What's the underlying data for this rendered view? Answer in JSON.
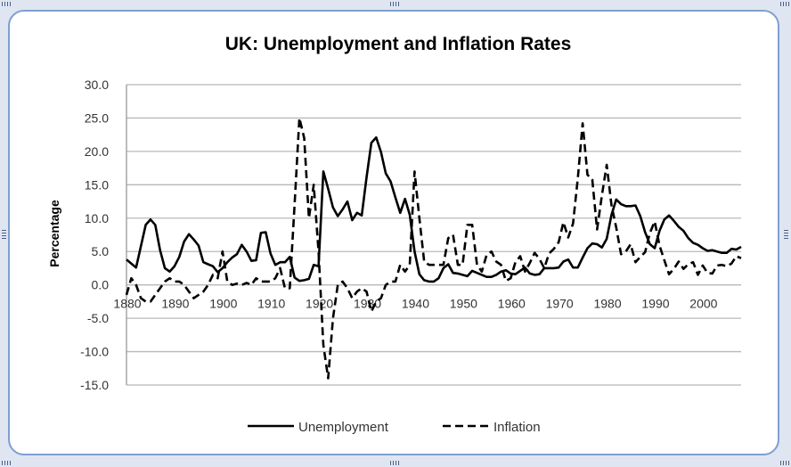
{
  "chart_data": {
    "type": "line",
    "title": "UK: Unemployment and Inflation Rates",
    "xlabel": "",
    "ylabel": "Percentage",
    "xlim": [
      1880,
      2008
    ],
    "ylim": [
      -15,
      30
    ],
    "yticks": [
      "30.0",
      "25.0",
      "20.0",
      "15.0",
      "10.0",
      "5.0",
      "0.0",
      "-5.0",
      "-10.0",
      "-15.0"
    ],
    "xticks": [
      "1880",
      "1890",
      "1900",
      "1910",
      "1920",
      "1930",
      "1940",
      "1950",
      "1960",
      "1970",
      "1980",
      "1990",
      "2000"
    ],
    "grid": true,
    "legend": "bottom",
    "series": [
      {
        "name": "Unemployment",
        "style": "solid",
        "color": "#000000",
        "x": [
          1880,
          1881,
          1882,
          1883,
          1884,
          1885,
          1886,
          1887,
          1888,
          1889,
          1890,
          1891,
          1892,
          1893,
          1894,
          1895,
          1896,
          1897,
          1898,
          1899,
          1900,
          1901,
          1902,
          1903,
          1904,
          1905,
          1906,
          1907,
          1908,
          1909,
          1910,
          1911,
          1912,
          1913,
          1914,
          1915,
          1916,
          1917,
          1918,
          1919,
          1920,
          1921,
          1922,
          1923,
          1924,
          1925,
          1926,
          1927,
          1928,
          1929,
          1930,
          1931,
          1932,
          1933,
          1934,
          1935,
          1936,
          1937,
          1938,
          1939,
          1940,
          1941,
          1942,
          1943,
          1944,
          1945,
          1946,
          1947,
          1948,
          1949,
          1950,
          1951,
          1952,
          1953,
          1954,
          1955,
          1956,
          1957,
          1958,
          1959,
          1960,
          1961,
          1962,
          1963,
          1964,
          1965,
          1966,
          1967,
          1968,
          1969,
          1970,
          1971,
          1972,
          1973,
          1974,
          1975,
          1976,
          1977,
          1978,
          1979,
          1980,
          1981,
          1982,
          1983,
          1984,
          1985,
          1986,
          1987,
          1988,
          1989,
          1990,
          1991,
          1992,
          1993,
          1994,
          1995,
          1996,
          1997,
          1998,
          1999,
          2000,
          2001,
          2002,
          2003,
          2004,
          2005,
          2006,
          2007,
          2008
        ],
        "values": [
          3.8,
          3.2,
          2.6,
          5.8,
          9.0,
          9.8,
          9.0,
          5.2,
          2.5,
          2.0,
          2.8,
          4.2,
          6.5,
          7.6,
          6.8,
          5.9,
          3.4,
          3.1,
          2.8,
          1.9,
          2.5,
          3.4,
          4.1,
          4.6,
          6.0,
          5.0,
          3.6,
          3.7,
          7.8,
          7.9,
          4.7,
          3.0,
          3.4,
          3.4,
          4.2,
          1.1,
          0.6,
          0.7,
          0.9,
          3.0,
          2.8,
          17.0,
          14.4,
          11.6,
          10.3,
          11.3,
          12.5,
          9.7,
          10.8,
          10.4,
          16.1,
          21.3,
          22.1,
          19.9,
          16.7,
          15.5,
          13.1,
          10.8,
          12.9,
          10.5,
          5.0,
          1.6,
          0.7,
          0.5,
          0.5,
          1.0,
          2.5,
          3.1,
          1.8,
          1.7,
          1.5,
          1.3,
          2.1,
          1.8,
          1.5,
          1.2,
          1.2,
          1.5,
          2.0,
          2.2,
          1.7,
          1.6,
          2.1,
          2.6,
          1.7,
          1.5,
          1.6,
          2.5,
          2.5,
          2.5,
          2.6,
          3.5,
          3.8,
          2.6,
          2.6,
          4.1,
          5.5,
          6.2,
          6.1,
          5.6,
          6.9,
          10.5,
          12.8,
          12.1,
          11.8,
          11.8,
          11.9,
          10.3,
          7.9,
          6.1,
          5.5,
          8.1,
          9.8,
          10.4,
          9.6,
          8.7,
          8.1,
          7.0,
          6.3,
          6.0,
          5.5,
          5.1,
          5.2,
          5.0,
          4.8,
          4.8,
          5.4,
          5.3,
          5.7
        ]
      },
      {
        "name": "Inflation",
        "style": "dashed",
        "color": "#000000",
        "x": [
          1880,
          1881,
          1882,
          1883,
          1884,
          1885,
          1886,
          1887,
          1888,
          1889,
          1890,
          1891,
          1892,
          1893,
          1894,
          1895,
          1896,
          1897,
          1898,
          1899,
          1900,
          1901,
          1902,
          1903,
          1904,
          1905,
          1906,
          1907,
          1908,
          1909,
          1910,
          1911,
          1912,
          1913,
          1914,
          1915,
          1916,
          1917,
          1918,
          1919,
          1920,
          1921,
          1922,
          1923,
          1924,
          1925,
          1926,
          1927,
          1928,
          1929,
          1930,
          1931,
          1932,
          1933,
          1934,
          1935,
          1936,
          1937,
          1938,
          1939,
          1940,
          1941,
          1942,
          1943,
          1944,
          1945,
          1946,
          1947,
          1948,
          1949,
          1950,
          1951,
          1952,
          1953,
          1954,
          1955,
          1956,
          1957,
          1958,
          1959,
          1960,
          1961,
          1962,
          1963,
          1964,
          1965,
          1966,
          1967,
          1968,
          1969,
          1970,
          1971,
          1972,
          1973,
          1974,
          1975,
          1976,
          1977,
          1978,
          1979,
          1980,
          1981,
          1982,
          1983,
          1984,
          1985,
          1986,
          1987,
          1988,
          1989,
          1990,
          1991,
          1992,
          1993,
          1994,
          1995,
          1996,
          1997,
          1998,
          1999,
          2000,
          2001,
          2002,
          2003,
          2004,
          2005,
          2006,
          2007,
          2008
        ],
        "values": [
          -1.5,
          1.0,
          0.0,
          -2.0,
          -2.5,
          -2.5,
          -1.5,
          -0.5,
          0.5,
          1.0,
          0.5,
          0.5,
          0.0,
          -1.0,
          -2.0,
          -1.5,
          -1.0,
          0.0,
          1.5,
          1.0,
          5.0,
          0.5,
          0.0,
          0.2,
          0.0,
          0.3,
          0.0,
          1.0,
          0.5,
          0.5,
          0.5,
          1.0,
          2.5,
          -0.5,
          -0.5,
          12.0,
          25.0,
          22.0,
          10.0,
          15.0,
          5.0,
          -9.0,
          -14.0,
          -5.0,
          0.0,
          0.5,
          -0.5,
          -2.0,
          -1.0,
          -0.5,
          -1.0,
          -4.0,
          -2.5,
          -2.0,
          0.0,
          0.5,
          0.5,
          3.0,
          2.0,
          3.0,
          17.0,
          10.0,
          3.5,
          3.0,
          3.0,
          3.0,
          3.0,
          7.0,
          7.5,
          3.0,
          3.0,
          9.0,
          9.0,
          3.0,
          2.0,
          4.5,
          5.0,
          3.5,
          3.0,
          0.6,
          1.0,
          3.4,
          4.3,
          2.0,
          3.3,
          4.8,
          3.9,
          2.5,
          4.7,
          5.4,
          6.4,
          9.4,
          7.1,
          9.2,
          16.0,
          24.2,
          16.5,
          15.8,
          8.3,
          13.4,
          18.0,
          11.9,
          8.6,
          4.6,
          5.0,
          6.1,
          3.4,
          4.2,
          4.9,
          7.8,
          9.5,
          5.9,
          3.7,
          1.6,
          2.4,
          3.5,
          2.4,
          3.1,
          3.4,
          1.5,
          2.9,
          1.8,
          1.7,
          2.9,
          3.0,
          2.8,
          3.2,
          4.3,
          4.0
        ]
      }
    ]
  }
}
